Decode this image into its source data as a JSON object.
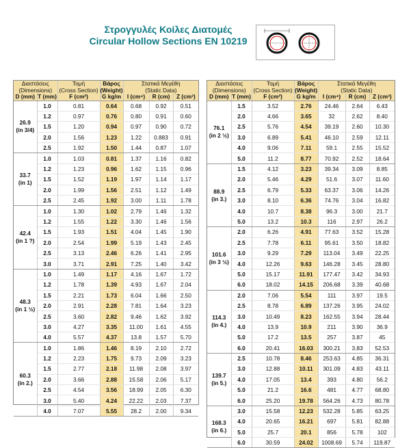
{
  "title_greek": "Στρογγυλές Κοίλες Διατομές",
  "title_english": "Circular Hollow Sections EN 10219",
  "headers": {
    "dimensions_gr": "Διαστάσεις",
    "dimensions_en": "(Dimensions)",
    "section_gr": "Τομή",
    "section_en": "(Cross Section)",
    "weight_gr": "Βάρος",
    "weight_en": "(Weight)",
    "static_gr": "Στατικά Μεγέθη",
    "static_en": "(Static Data)",
    "col_d": "D (mm)",
    "col_t": "T (mm)",
    "col_f": "F (cm²)",
    "col_g": "G kg/m",
    "col_i": "I (cm⁴)",
    "col_r": "R (cm)",
    "col_z": "Z (cm³)"
  },
  "left_groups": [
    {
      "d": "26.9",
      "inch": "(in 3/4)",
      "rows": [
        [
          "1.0",
          "0.81",
          "0.64",
          "0.68",
          "0.92",
          "0.51"
        ],
        [
          "1.2",
          "0.97",
          "0.76",
          "0.80",
          "0.91",
          "0.60"
        ],
        [
          "1.5",
          "1.20",
          "0.94",
          "0.97",
          "0.90",
          "0.72"
        ],
        [
          "2.0",
          "1.56",
          "1.23",
          "1.22",
          "0.883",
          "0.91"
        ],
        [
          "2.5",
          "1.92",
          "1.50",
          "1.44",
          "0.87",
          "1.07"
        ]
      ]
    },
    {
      "d": "33.7",
      "inch": "(in 1)",
      "rows": [
        [
          "1.0",
          "1.03",
          "0.81",
          "1.37",
          "1.16",
          "0.82"
        ],
        [
          "1.2",
          "1.23",
          "0.96",
          "1.62",
          "1.15",
          "0.96"
        ],
        [
          "1.5",
          "1.52",
          "1.19",
          "1.97",
          "1.14",
          "1.17"
        ],
        [
          "2.0",
          "1.99",
          "1.56",
          "2.51",
          "1.12",
          "1.49"
        ],
        [
          "2.5",
          "2.45",
          "1.92",
          "3.00",
          "1.11",
          "1.78"
        ]
      ]
    },
    {
      "d": "42.4",
      "inch": "(in 1 ?)",
      "rows": [
        [
          "1.0",
          "1.30",
          "1.02",
          "2.79",
          "1.46",
          "1.32"
        ],
        [
          "1.2",
          "1.55",
          "1.22",
          "3.30",
          "1.46",
          "1.56"
        ],
        [
          "1.5",
          "1.93",
          "1.51",
          "4.04",
          "1.45",
          "1.90"
        ],
        [
          "2.0",
          "2.54",
          "1.99",
          "5.19",
          "1.43",
          "2.45"
        ],
        [
          "2.5",
          "3.13",
          "2.46",
          "6.26",
          "1.41",
          "2.95"
        ],
        [
          "3.0",
          "3.71",
          "2.91",
          "7.25",
          "1.40",
          "3.42"
        ]
      ]
    },
    {
      "d": "48.3",
      "inch": "(in 1 ½)",
      "rows": [
        [
          "1.0",
          "1.49",
          "1.17",
          "4.16",
          "1.67",
          "1.72"
        ],
        [
          "1.2",
          "1.78",
          "1.39",
          "4.93",
          "1.67",
          "2.04"
        ],
        [
          "1.5",
          "2.21",
          "1.73",
          "6.04",
          "1.66",
          "2.50"
        ],
        [
          "2.0",
          "2.91",
          "2.28",
          "7.81",
          "1.64",
          "3.23"
        ],
        [
          "2.5",
          "3.60",
          "2.82",
          "9.46",
          "1.62",
          "3.92"
        ],
        [
          "3.0",
          "4.27",
          "3.35",
          "11.00",
          "1.61",
          "4.55"
        ],
        [
          "4.0",
          "5.57",
          "4.37",
          "13.8",
          "1.57",
          "5.70"
        ]
      ]
    },
    {
      "d": "60.3",
      "inch": "(in 2.)",
      "rows": [
        [
          "1.0",
          "1.86",
          "1.46",
          "8.19",
          "2.10",
          "2.72"
        ],
        [
          "1.2",
          "2.23",
          "1.75",
          "9.73",
          "2.09",
          "3.23"
        ],
        [
          "1.5",
          "2.77",
          "2.18",
          "11.98",
          "2.08",
          "3.97"
        ],
        [
          "2.0",
          "3.66",
          "2.88",
          "15.58",
          "2.06",
          "5.17"
        ],
        [
          "2.5",
          "4.54",
          "3.56",
          "18.99",
          "2.05",
          "6.30"
        ],
        [
          "3.0",
          "5.40",
          "4.24",
          "22.22",
          "2.03",
          "7.37"
        ],
        [
          "4.0",
          "7.07",
          "5.55",
          "28.2",
          "2.00",
          "9.34"
        ]
      ]
    }
  ],
  "right_groups": [
    {
      "d": "76.1",
      "inch": "(in 2 ½)",
      "rows": [
        [
          "1.5",
          "3.52",
          "2.76",
          "24.46",
          "2.64",
          "6.43"
        ],
        [
          "2.0",
          "4.66",
          "3.65",
          "32",
          "2.62",
          "8.40"
        ],
        [
          "2.5",
          "5.76",
          "4.54",
          "39.19",
          "2.60",
          "10.30"
        ],
        [
          "3.0",
          "6.89",
          "5.41",
          "46.10",
          "2.59",
          "12.11"
        ],
        [
          "4.0",
          "9.06",
          "7.11",
          "59.1",
          "2.55",
          "15.52"
        ],
        [
          "5.0",
          "11.2",
          "8.77",
          "70.92",
          "2.52",
          "18.64"
        ]
      ]
    },
    {
      "d": "88.9",
      "inch": "(in 3.)",
      "rows": [
        [
          "1.5",
          "4.12",
          "3.23",
          "39.34",
          "3.09",
          "8.85"
        ],
        [
          "2.0",
          "5.46",
          "4.29",
          "51.6",
          "3.07",
          "11.60"
        ],
        [
          "2.5",
          "6.79",
          "5.33",
          "63.37",
          "3.06",
          "14.26"
        ],
        [
          "3.0",
          "8.10",
          "6.36",
          "74.76",
          "3.04",
          "16.82"
        ],
        [
          "4.0",
          "10.7",
          "8.38",
          "96.3",
          "3.00",
          "21.7"
        ],
        [
          "5.0",
          "13.2",
          "10.3",
          "116",
          "2.97",
          "26.2"
        ]
      ]
    },
    {
      "d": "101.6",
      "inch": "(in 3 ½)",
      "rows": [
        [
          "2.0",
          "6.26",
          "4.91",
          "77.63",
          "3.52",
          "15.28"
        ],
        [
          "2.5",
          "7.78",
          "6.11",
          "95.61",
          "3.50",
          "18.82"
        ],
        [
          "3.0",
          "9.29",
          "7.29",
          "113.04",
          "3.49",
          "22.25"
        ],
        [
          "4.0",
          "12.26",
          "9.63",
          "146.28",
          "3.45",
          "28.80"
        ],
        [
          "5.0",
          "15.17",
          "11.91",
          "177.47",
          "3.42",
          "34.93"
        ],
        [
          "6.0",
          "18.02",
          "14.15",
          "206.68",
          "3.39",
          "40.68"
        ]
      ]
    },
    {
      "d": "114.3",
      "inch": "(in 4.)",
      "rows": [
        [
          "2.0",
          "7.06",
          "5.54",
          "111",
          "3.97",
          "19.5"
        ],
        [
          "2.5",
          "8.78",
          "6.89",
          "137.26",
          "3.95",
          "24.02"
        ],
        [
          "3.0",
          "10.49",
          "8.23",
          "162.55",
          "3.94",
          "28.44"
        ],
        [
          "4.0",
          "13.9",
          "10.9",
          "211",
          "3.90",
          "36.9"
        ],
        [
          "5.0",
          "17.2",
          "13.5",
          "257",
          "3.87",
          "45"
        ],
        [
          "6.0",
          "20.41",
          "16.03",
          "300.21",
          "3.83",
          "52.53"
        ]
      ]
    },
    {
      "d": "139.7",
      "inch": "(in 5.)",
      "rows": [
        [
          "2.5",
          "10.78",
          "8.46",
          "253.63",
          "4.85",
          "36.31"
        ],
        [
          "3.0",
          "12.88",
          "10.11",
          "301.09",
          "4.83",
          "43.11"
        ],
        [
          "4.0",
          "17.05",
          "13.4",
          "393",
          "4.80",
          "56.2"
        ],
        [
          "5.0",
          "21.2",
          "16.6",
          "481",
          "4.77",
          "68.80"
        ],
        [
          "6.0",
          "25.20",
          "19.78",
          "564.26",
          "4.73",
          "80.78"
        ]
      ]
    },
    {
      "d": "168.3",
      "inch": "(in 6.)",
      "rows": [
        [
          "3.0",
          "15.58",
          "12.23",
          "532.28",
          "5.85",
          "63.25"
        ],
        [
          "4.0",
          "20.65",
          "16.21",
          "697",
          "5.81",
          "82.88"
        ],
        [
          "5.0",
          "25.7",
          "20.1",
          "856",
          "5.78",
          "102"
        ],
        [
          "6.0",
          "30.59",
          "24.02",
          "1008.69",
          "5.74",
          "119.87"
        ]
      ]
    }
  ]
}
